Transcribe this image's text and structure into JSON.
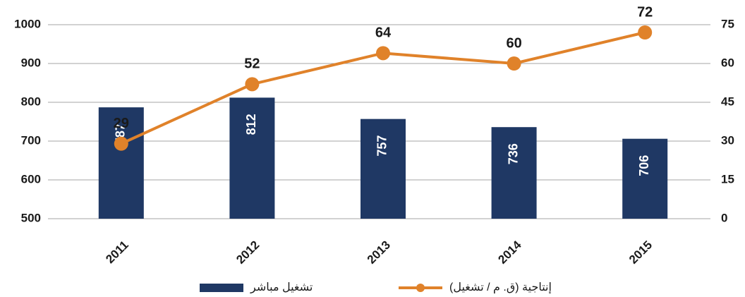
{
  "chart_data": {
    "type": "bar",
    "categories": [
      "2011",
      "2012",
      "2013",
      "2014",
      "2015"
    ],
    "series": [
      {
        "name": "تشغيل مباشر",
        "color": "#1f3864",
        "values": [
          787,
          812,
          757,
          736,
          706
        ]
      },
      {
        "name": "إنتاجية (ق. م / تشغيل)",
        "color": "#e0822a",
        "type": "line",
        "axis": "y2",
        "values": [
          29,
          52,
          64,
          60,
          72
        ]
      }
    ],
    "ylim": [
      500,
      1000
    ],
    "yticks": [
      500,
      600,
      700,
      800,
      900,
      1000
    ],
    "y2lim": [
      0,
      75
    ],
    "y2ticks": [
      0,
      15,
      30,
      45,
      60,
      75
    ],
    "grid": true,
    "legend": "bottom"
  }
}
